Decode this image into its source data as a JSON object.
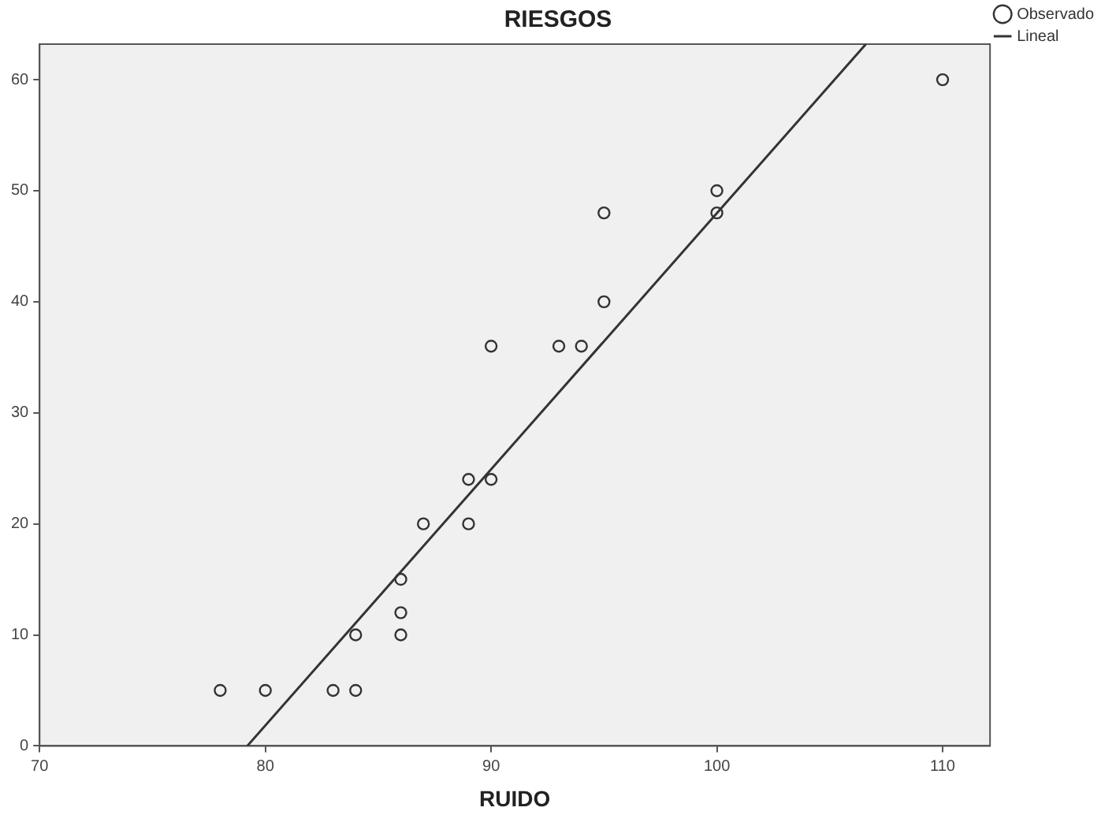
{
  "chart_data": {
    "type": "scatter",
    "title": "RIESGOS",
    "xlabel": "RUIDO",
    "legend": "top right",
    "grid": false,
    "xlim": [
      70,
      112.1
    ],
    "xticks": [
      70,
      80,
      90,
      100,
      110
    ],
    "ylim": [
      0,
      63.2
    ],
    "yticks": [
      0,
      10,
      20,
      30,
      40,
      50,
      60
    ],
    "series": [
      {
        "name": "Observado",
        "type": "scatter",
        "marker": "circle",
        "color": "#333333",
        "x": [
          78,
          80,
          83,
          84,
          84,
          86,
          86,
          86,
          87,
          89,
          89,
          90,
          90,
          93,
          94,
          95,
          95,
          100,
          100,
          110
        ],
        "values": [
          5,
          5,
          5,
          5,
          10,
          10,
          12,
          15,
          20,
          20,
          24,
          24,
          36,
          36,
          36,
          40,
          48,
          48,
          50,
          60
        ]
      },
      {
        "name": "Lineal",
        "type": "line",
        "marker": "none",
        "color": "#333333",
        "x": [
          79.2,
          106.6
        ],
        "values": [
          0,
          63.2
        ]
      }
    ]
  }
}
